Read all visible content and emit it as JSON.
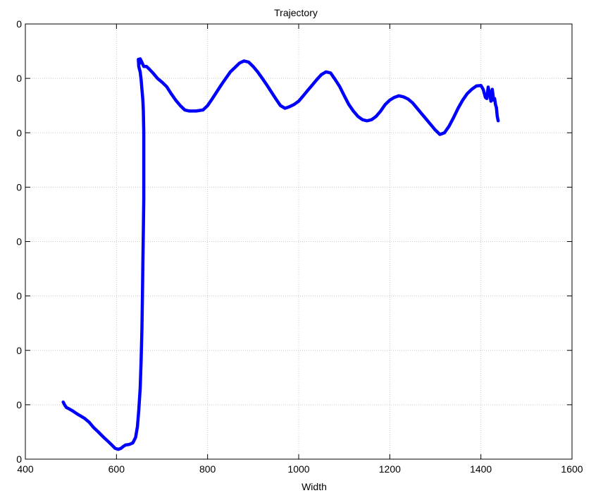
{
  "chart_data": {
    "type": "line",
    "title": "Trajectory",
    "xlabel": "Width",
    "ylabel": "",
    "xlim": [
      400,
      1600
    ],
    "ylim": [
      0,
      800
    ],
    "grid": true,
    "legend": "none",
    "xticks": [
      "400",
      "600",
      "800",
      "1000",
      "1200",
      "1400",
      "1600"
    ],
    "yticks": [
      "0",
      "0",
      "0",
      "0",
      "0",
      "0",
      "0",
      "0",
      "0"
    ],
    "series": [
      {
        "color": "#0000ff",
        "x": [
          483,
          486,
          490,
          497,
          505,
          512,
          520,
          530,
          540,
          550,
          560,
          572,
          585,
          597,
          604,
          610,
          616,
          620,
          628,
          636,
          642,
          646,
          649,
          652,
          654,
          656,
          657,
          658,
          659,
          660,
          660,
          660,
          659,
          658,
          656,
          654,
          652,
          650,
          649,
          648,
          650,
          652,
          655,
          660,
          666,
          672,
          680,
          690,
          700,
          710,
          720,
          730,
          740,
          750,
          760,
          775,
          790,
          800,
          810,
          820,
          830,
          840,
          850,
          860,
          870,
          880,
          890,
          900,
          910,
          920,
          930,
          940,
          950,
          960,
          970,
          980,
          990,
          1000,
          1010,
          1020,
          1030,
          1040,
          1050,
          1060,
          1070,
          1080,
          1090,
          1100,
          1110,
          1120,
          1130,
          1140,
          1150,
          1160,
          1170,
          1180,
          1190,
          1200,
          1210,
          1220,
          1230,
          1240,
          1250,
          1260,
          1270,
          1280,
          1290,
          1300,
          1310,
          1320,
          1330,
          1340,
          1350,
          1360,
          1370,
          1380,
          1390,
          1400,
          1405,
          1410,
          1413,
          1416,
          1419,
          1422,
          1425,
          1428,
          1430,
          1432,
          1434,
          1436,
          1438
        ],
        "y": [
          105,
          100,
          95,
          92,
          88,
          84,
          80,
          75,
          68,
          58,
          50,
          40,
          30,
          20,
          18,
          20,
          24,
          26,
          27,
          30,
          40,
          60,
          90,
          130,
          180,
          240,
          300,
          360,
          420,
          480,
          540,
          600,
          640,
          660,
          680,
          698,
          712,
          718,
          722,
          735,
          727,
          736,
          731,
          722,
          722,
          717,
          710,
          700,
          693,
          685,
          672,
          660,
          650,
          642,
          640,
          640,
          642,
          650,
          662,
          675,
          688,
          700,
          712,
          720,
          728,
          732,
          730,
          722,
          712,
          700,
          688,
          675,
          662,
          650,
          645,
          648,
          652,
          658,
          668,
          678,
          688,
          698,
          707,
          712,
          710,
          698,
          685,
          668,
          652,
          640,
          630,
          624,
          622,
          624,
          630,
          640,
          652,
          660,
          665,
          668,
          666,
          662,
          655,
          645,
          635,
          625,
          615,
          605,
          597,
          600,
          612,
          628,
          645,
          660,
          672,
          680,
          686,
          687,
          680,
          665,
          663,
          684,
          672,
          658,
          680,
          660,
          663,
          652,
          646,
          630,
          622
        ]
      }
    ]
  }
}
